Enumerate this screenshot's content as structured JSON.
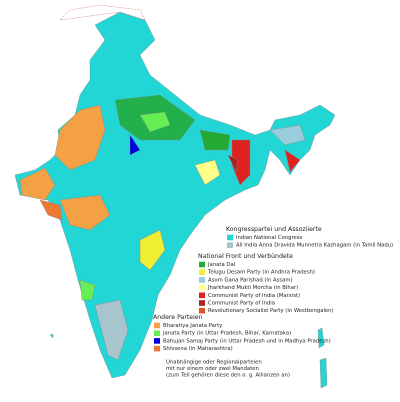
{
  "legend": {
    "groups": [
      {
        "title": "Kongresspartei und Assoziierte",
        "items": [
          {
            "label": "Indian National Congress",
            "color": "#22d6d6"
          },
          {
            "label": "All India Anna Dravida Munnetra Kazhagam (in Tamil Nadu)",
            "color": "#a8c4cc"
          }
        ]
      },
      {
        "title": "National Front und Verbündete",
        "items": [
          {
            "label": "Janata Dal",
            "color": "#22aa33"
          },
          {
            "label": "Telugu Desam Party (in Andhra Pradesh)",
            "color": "#eeee33"
          },
          {
            "label": "Asom Gana Parishad (in Assam)",
            "color": "#99ccdd"
          },
          {
            "label": "Jharkhand Mukti Morcha (in Bihar)",
            "color": "#ffff88"
          },
          {
            "label": "Communist Party of India (Marxist)",
            "color": "#dd2222"
          },
          {
            "label": "Communist Party of India",
            "color": "#aa2222"
          },
          {
            "label": "Revolutionary Socialist Party (in Westbengalen)",
            "color": "#e05522"
          }
        ]
      },
      {
        "title": "Andere Parteien",
        "items": [
          {
            "label": "Bharatiya Janata Party",
            "color": "#f4a044"
          },
          {
            "label": "Janata Party (in Uttar Pradesh, Bihar, Karnataka)",
            "color": "#66ee55"
          },
          {
            "label": "Bahujan Samaj Party (in Uttar Pradesh und in Madhya Pradesh)",
            "color": "#0000dd"
          },
          {
            "label": "Shivsena (in Maharashtra)",
            "color": "#ee7733"
          }
        ]
      }
    ],
    "note": [
      "Unabhängige oder Regionalparteien",
      "mit nur einem oder zwei Mandaten",
      "(zum Teil gehören diese den o. g. Allianzen an)"
    ]
  }
}
